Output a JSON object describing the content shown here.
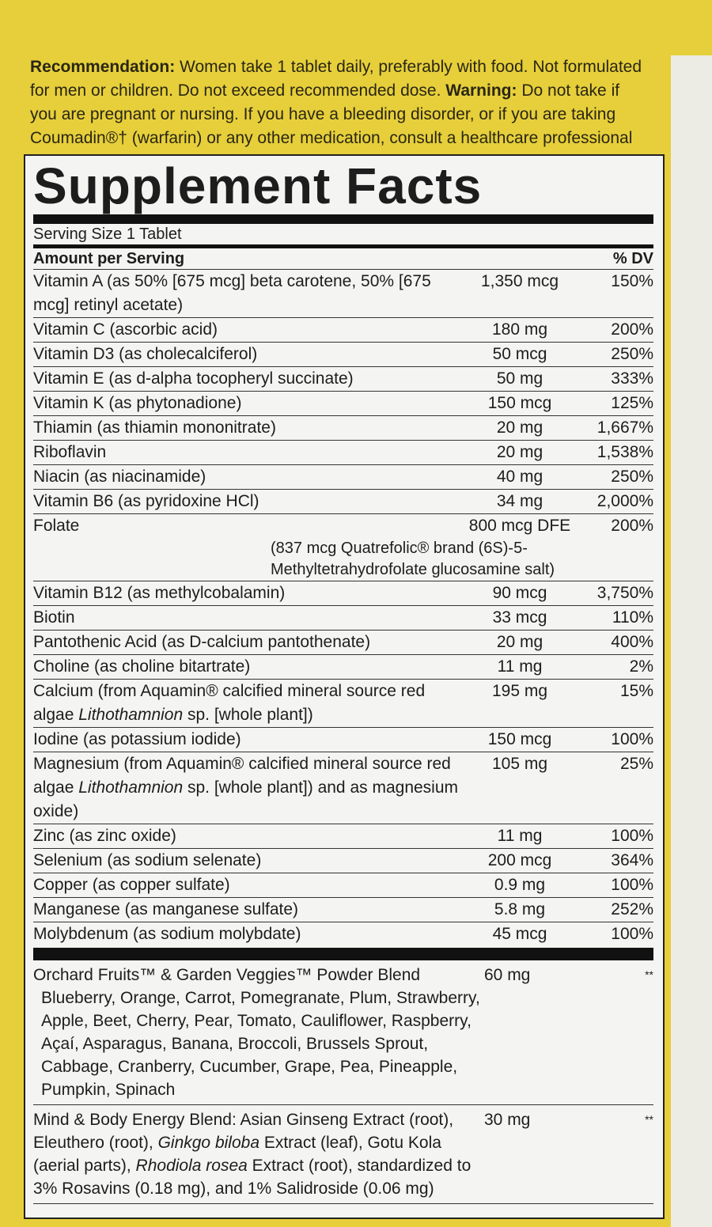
{
  "recommendation": [
    {
      "text": "Recommendation:",
      "bold": true
    },
    {
      "text": " Women take 1 tablet daily, preferably with food. Not formulated for men or children. Do not exceed recommended dose. "
    },
    {
      "text": "Warning:",
      "bold": true
    },
    {
      "text": " Do not take if you are pregnant or nursing. If you have a bleeding disorder, or if you are taking Coumadin®† (warfarin) or any other medication, consult a healthcare professional before use."
    }
  ],
  "facts": {
    "title": "Supplement Facts",
    "serving_size": "Serving Size 1 Tablet",
    "dv_header": "% DV",
    "amount_header": "Amount per Serving",
    "rows": [
      {
        "name": "Vitamin A (as 50% [675 mcg] beta carotene, 50% [675 mcg] retinyl acetate)",
        "amount": "1,350 mcg",
        "dv": "150%"
      },
      {
        "name": "Vitamin C (ascorbic acid)",
        "amount": "180 mg",
        "dv": "200%"
      },
      {
        "name": "Vitamin D3 (as cholecalciferol)",
        "amount": "50 mcg",
        "dv": "250%"
      },
      {
        "name": "Vitamin E (as d-alpha tocopheryl succinate)",
        "amount": "50 mg",
        "dv": "333%"
      },
      {
        "name": "Vitamin K (as phytonadione)",
        "amount": "150 mcg",
        "dv": "125%"
      },
      {
        "name": "Thiamin (as thiamin mononitrate)",
        "amount": "20 mg",
        "dv": "1,667%"
      },
      {
        "name": "Riboflavin",
        "amount": "20 mg",
        "dv": "1,538%"
      },
      {
        "name": "Niacin (as niacinamide)",
        "amount": "40 mg",
        "dv": "250%"
      },
      {
        "name": "Vitamin B6 (as pyridoxine HCl)",
        "amount": "34 mg",
        "dv": "2,000%"
      },
      {
        "name": "Folate",
        "amount": "800 mcg DFE",
        "dv": "200%",
        "note": "(837 mcg Quatrefolic® brand (6S)-5-Methyltetrahydrofolate glucosamine salt)"
      },
      {
        "name": "Vitamin B12 (as methylcobalamin)",
        "amount": "90 mcg",
        "dv": "3,750%"
      },
      {
        "name": "Biotin",
        "amount": "33 mcg",
        "dv": "110%"
      },
      {
        "name": "Pantothenic Acid (as D-calcium pantothenate)",
        "amount": "20 mg",
        "dv": "400%"
      },
      {
        "name": "Choline (as choline bitartrate)",
        "amount": "11 mg",
        "dv": "2%"
      },
      {
        "name": [
          {
            "text": "Calcium (from Aquamin® calcified mineral source red algae "
          },
          {
            "text": "Lithothamnion",
            "italic": true
          },
          {
            "text": " sp. [whole plant])"
          }
        ],
        "amount": "195 mg",
        "dv": "15%"
      },
      {
        "name": "Iodine (as potassium iodide)",
        "amount": "150 mcg",
        "dv": "100%"
      },
      {
        "name": [
          {
            "text": "Magnesium (from Aquamin® calcified mineral source red algae "
          },
          {
            "text": "Lithothamnion",
            "italic": true
          },
          {
            "text": " sp. [whole plant]) and as magnesium oxide)"
          }
        ],
        "amount": "105 mg",
        "dv": "25%"
      },
      {
        "name": "Zinc (as zinc oxide)",
        "amount": "11 mg",
        "dv": "100%"
      },
      {
        "name": "Selenium (as sodium selenate)",
        "amount": "200 mcg",
        "dv": "364%"
      },
      {
        "name": "Copper (as copper sulfate)",
        "amount": "0.9 mg",
        "dv": "100%"
      },
      {
        "name": "Manganese (as manganese sulfate)",
        "amount": "5.8 mg",
        "dv": "252%"
      },
      {
        "name": "Molybdenum (as sodium molybdate)",
        "amount": "45 mcg",
        "dv": "100%"
      }
    ],
    "blends": [
      {
        "name": [
          {
            "text": "Orchard Fruits™ & Garden Veggies™ Powder Blend"
          }
        ],
        "amount": "60 mg",
        "dv": "**",
        "ingredients": "Blueberry, Orange, Carrot, Pomegranate, Plum, Strawberry, Apple, Beet, Cherry, Pear, Tomato, Cauliflower, Raspberry, Açaí, Asparagus, Banana, Broccoli, Brussels Sprout, Cabbage, Cranberry, Cucumber, Grape, Pea, Pineapple, Pumpkin, Spinach"
      },
      {
        "name": [
          {
            "text": "Mind & Body Energy Blend: Asian Ginseng Extract (root), Eleuthero (root), "
          },
          {
            "text": "Ginkgo biloba",
            "italic": true
          },
          {
            "text": " Extract (leaf), Gotu Kola (aerial parts), "
          },
          {
            "text": "Rhodiola rosea",
            "italic": true
          },
          {
            "text": " Extract (root), standardized to 3% Rosavins (0.18 mg), and 1% Salidroside (0.06 mg)"
          }
        ],
        "amount": "30 mg",
        "dv": "**"
      }
    ]
  }
}
